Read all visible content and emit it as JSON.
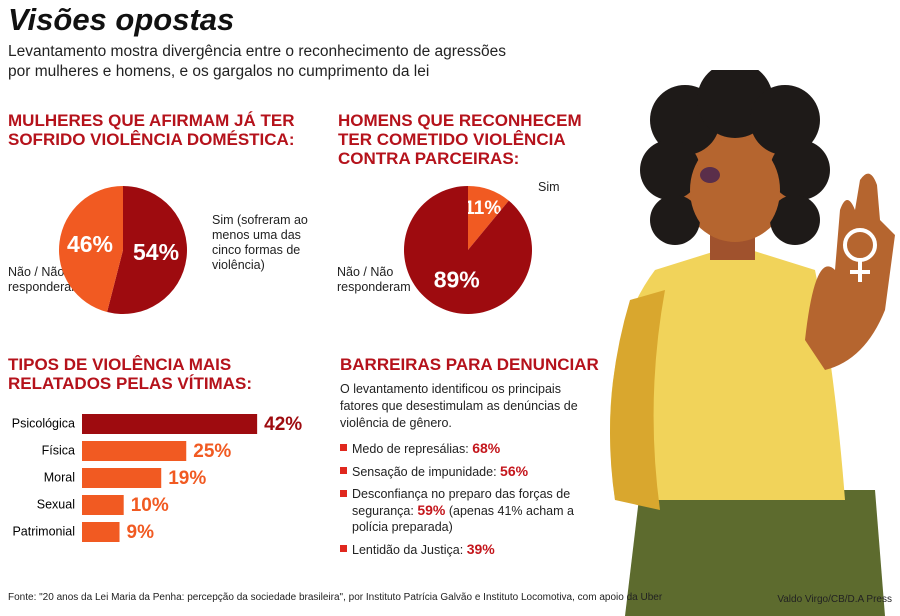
{
  "header": {
    "title": "Visões opostas",
    "subtitle": "Levantamento mostra divergência entre o reconhecimento de agressões por mulheres e homens, e os gargalos no cumprimento da lei"
  },
  "chart_data": [
    {
      "type": "pie",
      "title": "MULHERES QUE AFIRMAM JÁ TER SOFRIDO VIOLÊNCIA DOMÉSTICA:",
      "categories": [
        "Não / Não responderam",
        "Sim (sofreram ao menos uma das cinco formas de violência)"
      ],
      "values": [
        46,
        54
      ],
      "value_labels": [
        "46%",
        "54%"
      ],
      "colors": [
        "#f15a22",
        "#9e0b0f"
      ]
    },
    {
      "type": "pie",
      "title": "HOMENS QUE RECONHECEM TER COMETIDO VIOLÊNCIA CONTRA PARCEIRAS:",
      "categories": [
        "Não / Não responderam",
        "Sim"
      ],
      "values": [
        89,
        11
      ],
      "value_labels": [
        "89%",
        "11%"
      ],
      "colors": [
        "#9e0b0f",
        "#f15a22"
      ]
    },
    {
      "type": "bar",
      "title": "TIPOS DE VIOLÊNCIA MAIS RELATADOS PELAS VÍTIMAS:",
      "categories": [
        "Psicológica",
        "Física",
        "Moral",
        "Sexual",
        "Patrimonial"
      ],
      "values": [
        42,
        25,
        19,
        10,
        9
      ],
      "value_labels": [
        "42%",
        "25%",
        "19%",
        "10%",
        "9%"
      ],
      "colors": [
        "#9e0b0f",
        "#f15a22",
        "#f15a22",
        "#f15a22",
        "#f15a22"
      ]
    }
  ],
  "barriers": {
    "title": "BARREIRAS PARA DENUNCIAR",
    "intro": "O levantamento identificou os principais fatores que desestimulam as denúncias de violência de gênero.",
    "items": [
      {
        "label": "Medo de represálias:",
        "value": "68%"
      },
      {
        "label": "Sensação de impunidade:",
        "value": "56%"
      },
      {
        "label": "Desconfiança no preparo das forças de segurança:",
        "value": "59%",
        "note": "(apenas 41% acham a polícia preparada)"
      },
      {
        "label": "Lentidão da Justiça:",
        "value": "39%"
      }
    ]
  },
  "footer": {
    "source": "Fonte: \"20 anos da Lei Maria da Penha: percepção da sociedade brasileira\", por Instituto Patrícia Galvão e Instituto Locomotiva, com apoio da Uber",
    "credit": "Valdo Virgo/CB/D.A Press"
  }
}
